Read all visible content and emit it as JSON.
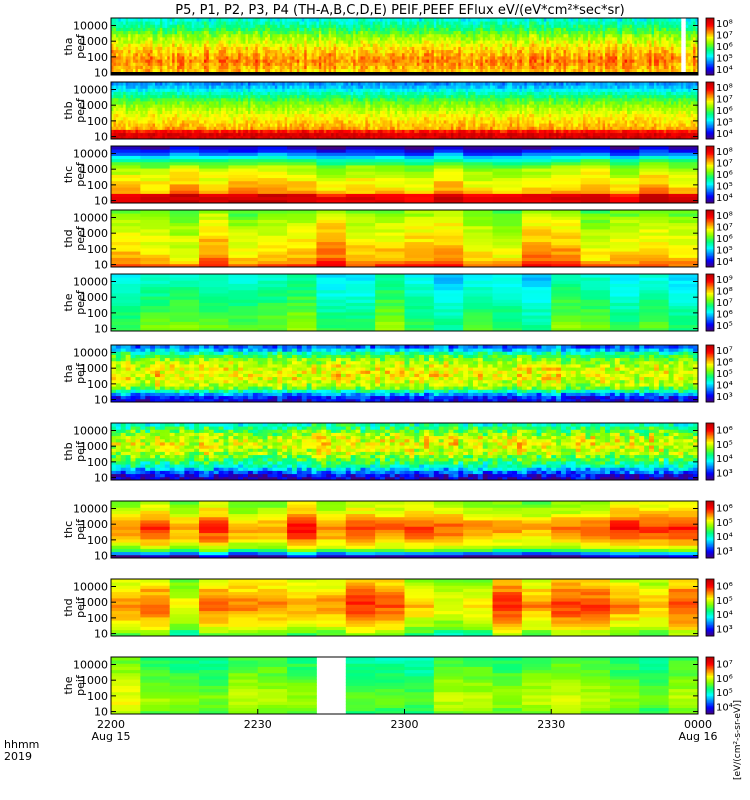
{
  "chart_data": {
    "type": "heatmap",
    "title": "P5, P1, P2, P3, P4 (TH-A,B,C,D,E) PEIF,PEEF EFlux eV/(eV*cm²*sec*sr)",
    "x_axis": {
      "label_line1": "hhmm",
      "label_line2": "2019",
      "range": [
        "2019-08-15 22:00",
        "2019-08-16 00:00"
      ],
      "ticks": [
        {
          "time": "2019-08-15 22:00",
          "label": "2200",
          "sublabel": "Aug 15"
        },
        {
          "time": "2019-08-15 22:30",
          "label": "2230",
          "sublabel": ""
        },
        {
          "time": "2019-08-15 23:00",
          "label": "2300",
          "sublabel": ""
        },
        {
          "time": "2019-08-15 23:30",
          "label": "2330",
          "sublabel": ""
        },
        {
          "time": "2019-08-16 00:00",
          "label": "0000",
          "sublabel": "Aug 16"
        }
      ]
    },
    "y_axis": {
      "scale": "log",
      "unit": "eV",
      "range": [
        7,
        30000
      ],
      "ticks": [
        10,
        100,
        1000,
        10000
      ]
    },
    "colormap": [
      "#400080",
      "#0000ff",
      "#0080ff",
      "#00ffff",
      "#00ff80",
      "#80ff00",
      "#ffff00",
      "#ff8000",
      "#ff0000",
      "#c00000"
    ],
    "colorbar_unit": "[eV/(cm²-s-sr-eV)]",
    "panels": [
      {
        "ylabel": [
          "tha",
          "peef"
        ],
        "cb_ticks": [
          "10⁴",
          "10⁵",
          "10⁶",
          "10⁷",
          "10⁸"
        ],
        "cb_unit": "[eV/(cm²-s-sr-eV)]",
        "bins": 18,
        "dt_min": 0.5,
        "base": [
          0.7,
          0.72,
          0.74,
          0.76,
          0.78,
          0.76,
          0.74,
          0.72,
          0.7,
          0.66,
          0.63,
          0.6,
          0.57,
          0.52,
          0.48,
          0.44,
          0.4,
          0.36
        ],
        "noise": 0.05,
        "mod": 0.05,
        "bottom_band": "#000000",
        "gaps": [
          [
            116.5,
            117.5
          ]
        ]
      },
      {
        "ylabel": [
          "thb",
          "peef"
        ],
        "cb_ticks": [
          "10⁴",
          "10⁵",
          "10⁶",
          "10⁷",
          "10⁸"
        ],
        "cb_unit": "[eV/(cm²-s-sr-eV)]",
        "bins": 18,
        "dt_min": 0.5,
        "base": [
          0.95,
          0.95,
          0.88,
          0.74,
          0.72,
          0.7,
          0.68,
          0.66,
          0.63,
          0.6,
          0.57,
          0.54,
          0.5,
          0.45,
          0.4,
          0.34,
          0.28,
          0.24
        ],
        "noise": 0.04,
        "mod": 0.03,
        "bottom_band": "",
        "gaps": []
      },
      {
        "ylabel": [
          "thc",
          "peef"
        ],
        "cb_ticks": [
          "10⁴",
          "10⁵",
          "10⁶",
          "10⁷",
          "10⁸"
        ],
        "cb_unit": "[eV/(cm²-s-sr-eV)]",
        "bins": 18,
        "dt_min": 6,
        "base": [
          0.95,
          0.95,
          0.92,
          0.74,
          0.72,
          0.7,
          0.68,
          0.66,
          0.64,
          0.62,
          0.6,
          0.56,
          0.5,
          0.42,
          0.32,
          0.22,
          0.12,
          0.05
        ],
        "noise": 0.04,
        "mod": 0.05,
        "bottom_band": "",
        "gaps": [
          [
            117,
            120
          ]
        ]
      },
      {
        "ylabel": [
          "thd",
          "peef"
        ],
        "cb_ticks": [
          "10⁴",
          "10⁵",
          "10⁶",
          "10⁷",
          "10⁸"
        ],
        "cb_unit": "[eV/(cm²-s-sr-eV)]",
        "bins": 18,
        "dt_min": 6,
        "base": [
          0.85,
          0.8,
          0.76,
          0.74,
          0.73,
          0.72,
          0.71,
          0.7,
          0.69,
          0.68,
          0.67,
          0.66,
          0.65,
          0.64,
          0.62,
          0.6,
          0.58,
          0.56
        ],
        "noise": 0.04,
        "mod": 0.08,
        "bottom_band": "",
        "gaps": [
          [
            117,
            120
          ]
        ]
      },
      {
        "ylabel": [
          "the",
          "peef"
        ],
        "cb_ticks": [
          "10⁵",
          "10⁶",
          "10⁷",
          "10⁸",
          "10⁹"
        ],
        "cb_unit": "[eV/(cm²-s-sr-eV)]",
        "bins": 18,
        "dt_min": 6,
        "base": [
          0.5,
          0.5,
          0.49,
          0.48,
          0.47,
          0.46,
          0.45,
          0.44,
          0.43,
          0.42,
          0.41,
          0.4,
          0.39,
          0.38,
          0.37,
          0.36,
          0.35,
          0.34
        ],
        "noise": 0.03,
        "mod": 0.08,
        "bottom_band": "",
        "gaps": [
          [
            117,
            120
          ]
        ]
      },
      {
        "ylabel": [
          "tha",
          "peif"
        ],
        "cb_ticks": [
          "10³",
          "10⁴",
          "10⁵",
          "10⁶",
          "10⁷"
        ],
        "cb_unit": "[eV/(cm²-s-sr-eV)]",
        "bins": 18,
        "dt_min": 1,
        "base": [
          0.1,
          0.15,
          0.25,
          0.4,
          0.55,
          0.6,
          0.63,
          0.65,
          0.66,
          0.66,
          0.65,
          0.63,
          0.6,
          0.56,
          0.5,
          0.42,
          0.3,
          0.2
        ],
        "noise": 0.08,
        "mod": 0.05,
        "bottom_band": "",
        "gaps": []
      },
      {
        "ylabel": [
          "thb",
          "peif"
        ],
        "cb_ticks": [
          "10³",
          "10⁴",
          "10⁵",
          "10⁶"
        ],
        "cb_unit": "[eV/(cm²-s-sr-eV)]",
        "bins": 18,
        "dt_min": 1,
        "base": [
          0.05,
          0.1,
          0.2,
          0.3,
          0.4,
          0.45,
          0.5,
          0.55,
          0.6,
          0.62,
          0.64,
          0.65,
          0.64,
          0.62,
          0.58,
          0.52,
          0.45,
          0.4
        ],
        "noise": 0.1,
        "mod": 0.05,
        "bottom_band": "",
        "gaps": []
      },
      {
        "ylabel": [
          "thc",
          "peif"
        ],
        "cb_ticks": [
          "10³",
          "10⁴",
          "10⁵",
          "10⁶"
        ],
        "cb_unit": "[eV/(cm²-s-sr-eV)]",
        "bins": 18,
        "dt_min": 6,
        "base": [
          0.05,
          0.25,
          0.5,
          0.6,
          0.66,
          0.7,
          0.74,
          0.76,
          0.78,
          0.8,
          0.78,
          0.76,
          0.72,
          0.68,
          0.64,
          0.62,
          0.6,
          0.58
        ],
        "noise": 0.04,
        "mod": 0.08,
        "bottom_band": "",
        "gaps": [
          [
            117,
            120
          ]
        ]
      },
      {
        "ylabel": [
          "thd",
          "peif"
        ],
        "cb_ticks": [
          "10³",
          "10⁴",
          "10⁵",
          "10⁶"
        ],
        "cb_unit": "[eV/(cm²-s-sr-eV)]",
        "bins": 18,
        "dt_min": 6,
        "base": [
          0.5,
          0.55,
          0.6,
          0.64,
          0.66,
          0.68,
          0.7,
          0.72,
          0.74,
          0.76,
          0.76,
          0.74,
          0.72,
          0.7,
          0.68,
          0.66,
          0.64,
          0.62
        ],
        "noise": 0.04,
        "mod": 0.1,
        "bottom_band": "",
        "gaps": [
          [
            117,
            120
          ]
        ]
      },
      {
        "ylabel": [
          "the",
          "peif"
        ],
        "cb_ticks": [
          "10⁴",
          "10⁵",
          "10⁶",
          "10⁷"
        ],
        "cb_unit": "[eV/(cm²-s-sr-eV)]",
        "bins": 18,
        "dt_min": 6,
        "base": [
          0.52,
          0.54,
          0.56,
          0.58,
          0.58,
          0.58,
          0.57,
          0.56,
          0.55,
          0.54,
          0.53,
          0.52,
          0.51,
          0.5,
          0.49,
          0.48,
          0.47,
          0.46
        ],
        "noise": 0.03,
        "mod": 0.08,
        "bottom_band": "",
        "gaps": [
          [
            39,
            48
          ],
          [
            117,
            120
          ]
        ]
      }
    ]
  }
}
